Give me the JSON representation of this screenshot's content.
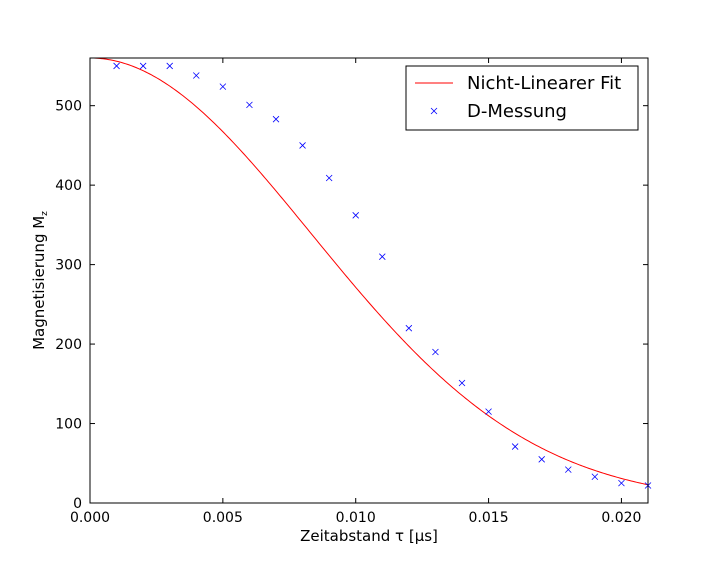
{
  "chart_data": {
    "type": "scatter",
    "xlabel": "Zeitabstand τ [μs]",
    "ylabel": "Magnetisierung M",
    "ylabel_subscript": "z",
    "xlim": [
      0.0,
      0.021
    ],
    "ylim": [
      0,
      560
    ],
    "x_ticks": [
      0.0,
      0.005,
      0.01,
      0.015,
      0.02
    ],
    "x_tick_labels": [
      "0.000",
      "0.005",
      "0.010",
      "0.015",
      "0.020"
    ],
    "y_ticks": [
      0,
      100,
      200,
      300,
      400,
      500
    ],
    "y_tick_labels": [
      "0",
      "100",
      "200",
      "300",
      "400",
      "500"
    ],
    "grid": false,
    "legend_position": "top-right",
    "series": [
      {
        "name": "Nicht-Linearer Fit",
        "kind": "line",
        "color": "#ff0000",
        "model": {
          "form": "M0*exp(-(x/T)^2)",
          "M0": 560,
          "T": 0.01175
        }
      },
      {
        "name": "D-Messung",
        "kind": "scatter",
        "marker": "x",
        "color": "#0000ff",
        "x": [
          0.001,
          0.002,
          0.003,
          0.004,
          0.005,
          0.006,
          0.007,
          0.008,
          0.009,
          0.01,
          0.011,
          0.012,
          0.013,
          0.014,
          0.015,
          0.016,
          0.017,
          0.018,
          0.019,
          0.02,
          0.021
        ],
        "y": [
          550,
          550,
          550,
          538,
          524,
          501,
          483,
          450,
          409,
          362,
          310,
          220,
          190,
          151,
          115,
          71,
          55,
          42,
          33,
          25,
          22
        ]
      }
    ]
  }
}
